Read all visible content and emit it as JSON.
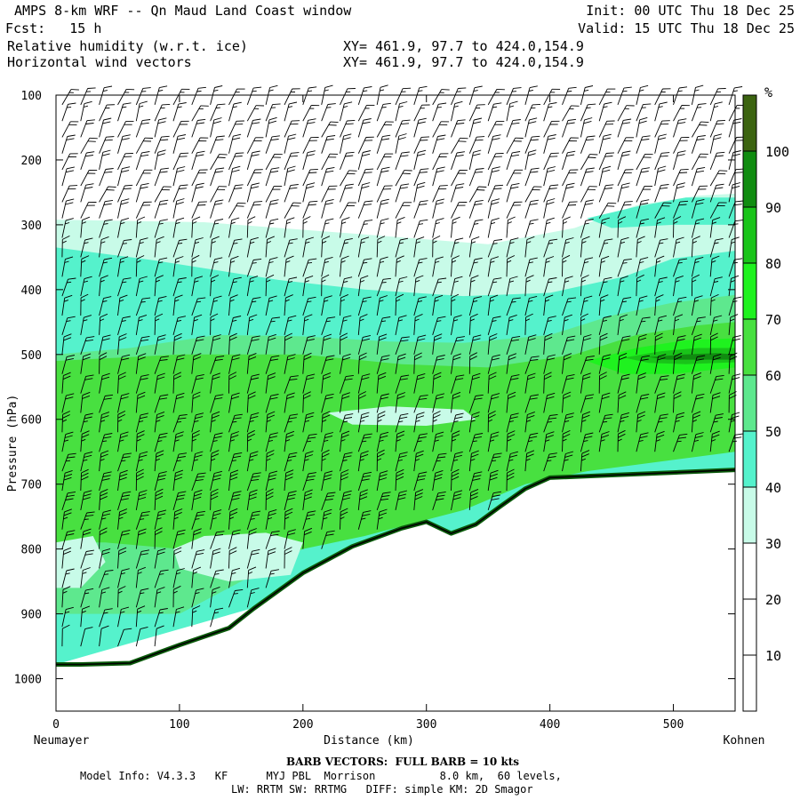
{
  "header": {
    "title": "AMPS 8-km WRF -- Qn Maud Land Coast window",
    "forecast": "Fcst:   15 h",
    "field1": "Relative humidity (w.r.t. ice)",
    "field2": "Horizontal wind vectors",
    "xy1": "XY= 461.9, 97.7 to 424.0,154.9",
    "xy2": "XY= 461.9, 97.7 to 424.0,154.9",
    "init": "Init: 00 UTC Thu 18 Dec 25",
    "valid": "Valid: 15 UTC Thu 18 Dec 25"
  },
  "footer": {
    "barb_note": "BARB VECTORS:  FULL BARB = 10 kts",
    "model_line1": "Model Info: V4.3.3   KF      MYJ PBL  Morrison          8.0 km,  60 levels,",
    "model_line2": "LW: RRTM SW: RRTMG   DIFF: simple KM: 2D Smagor"
  },
  "chart_data": {
    "type": "heatmap",
    "title": "Relative humidity (w.r.t. ice) cross-section with horizontal wind barbs",
    "xlabel": "Distance (km)",
    "ylabel": "Pressure (hPa)",
    "xlim": [
      0,
      550
    ],
    "ylim": [
      1050,
      100
    ],
    "x_ticks": [
      0,
      100,
      200,
      300,
      400,
      500
    ],
    "y_ticks": [
      100,
      200,
      300,
      400,
      500,
      600,
      700,
      800,
      900,
      1000
    ],
    "x_endpoints": {
      "left": "Neumayer",
      "right": "Kohnen"
    },
    "colorbar": {
      "unit": "%",
      "ticks": [
        10,
        20,
        30,
        40,
        50,
        60,
        70,
        80,
        90,
        100
      ],
      "levels": [
        {
          "from": 0,
          "to": 30,
          "color": "#ffffff"
        },
        {
          "from": 30,
          "to": 40,
          "color": "#c8fbe8"
        },
        {
          "from": 40,
          "to": 50,
          "color": "#55f2cc"
        },
        {
          "from": 50,
          "to": 60,
          "color": "#5ee88e"
        },
        {
          "from": 60,
          "to": 70,
          "color": "#48e040"
        },
        {
          "from": 70,
          "to": 80,
          "color": "#1ff21f"
        },
        {
          "from": 80,
          "to": 90,
          "color": "#19c419"
        },
        {
          "from": 90,
          "to": 100,
          "color": "#108c10"
        },
        {
          "from": 100,
          "to": 110,
          "color": "#3c6410"
        }
      ]
    },
    "terrain_surface_hPa": [
      [
        0,
        978
      ],
      [
        20,
        978
      ],
      [
        60,
        976
      ],
      [
        100,
        948
      ],
      [
        140,
        922
      ],
      [
        160,
        892
      ],
      [
        200,
        837
      ],
      [
        240,
        796
      ],
      [
        280,
        768
      ],
      [
        300,
        758
      ],
      [
        320,
        776
      ],
      [
        340,
        762
      ],
      [
        360,
        734
      ],
      [
        380,
        707
      ],
      [
        400,
        690
      ],
      [
        450,
        686
      ],
      [
        500,
        682
      ],
      [
        550,
        678
      ]
    ],
    "rh_regions": [
      {
        "level": 30,
        "polygon": [
          [
            0,
            292
          ],
          [
            120,
            296
          ],
          [
            250,
            315
          ],
          [
            350,
            330
          ],
          [
            420,
            305
          ],
          [
            470,
            270
          ],
          [
            520,
            255
          ],
          [
            550,
            252
          ],
          [
            550,
            678
          ],
          [
            0,
            978
          ]
        ]
      },
      {
        "level": 40,
        "polygon": [
          [
            0,
            335
          ],
          [
            80,
            355
          ],
          [
            180,
            385
          ],
          [
            250,
            400
          ],
          [
            330,
            410
          ],
          [
            400,
            405
          ],
          [
            460,
            380
          ],
          [
            500,
            352
          ],
          [
            550,
            340
          ],
          [
            550,
            678
          ],
          [
            0,
            978
          ]
        ]
      },
      {
        "level": 40,
        "polygon": [
          [
            430,
            290
          ],
          [
            470,
            272
          ],
          [
            510,
            258
          ],
          [
            550,
            258
          ],
          [
            550,
            300
          ],
          [
            500,
            300
          ],
          [
            450,
            305
          ]
        ]
      },
      {
        "level": 50,
        "polygon": [
          [
            0,
            500
          ],
          [
            60,
            490
          ],
          [
            130,
            470
          ],
          [
            200,
            472
          ],
          [
            270,
            480
          ],
          [
            330,
            482
          ],
          [
            400,
            470
          ],
          [
            450,
            440
          ],
          [
            500,
            420
          ],
          [
            550,
            408
          ],
          [
            550,
            640
          ],
          [
            400,
            690
          ],
          [
            300,
            740
          ],
          [
            200,
            800
          ],
          [
            100,
            900
          ],
          [
            0,
            900
          ]
        ]
      },
      {
        "level": 60,
        "polygon": [
          [
            0,
            510
          ],
          [
            100,
            500
          ],
          [
            200,
            500
          ],
          [
            280,
            515
          ],
          [
            350,
            520
          ],
          [
            420,
            500
          ],
          [
            470,
            470
          ],
          [
            520,
            455
          ],
          [
            550,
            450
          ],
          [
            550,
            650
          ],
          [
            430,
            680
          ],
          [
            380,
            700
          ],
          [
            330,
            740
          ],
          [
            300,
            755
          ],
          [
            250,
            780
          ],
          [
            200,
            800
          ],
          [
            140,
            820
          ],
          [
            100,
            800
          ],
          [
            40,
            790
          ],
          [
            0,
            790
          ]
        ]
      },
      {
        "level": 70,
        "polygon": [
          [
            430,
            510
          ],
          [
            470,
            490
          ],
          [
            510,
            478
          ],
          [
            550,
            475
          ],
          [
            550,
            520
          ],
          [
            500,
            530
          ],
          [
            460,
            530
          ]
        ]
      },
      {
        "level": 80,
        "polygon": [
          [
            460,
            505
          ],
          [
            490,
            495
          ],
          [
            520,
            490
          ],
          [
            550,
            490
          ],
          [
            550,
            512
          ],
          [
            510,
            515
          ],
          [
            480,
            513
          ]
        ]
      },
      {
        "level": 90,
        "polygon": [
          [
            480,
            504
          ],
          [
            510,
            500
          ],
          [
            535,
            498
          ],
          [
            550,
            500
          ],
          [
            550,
            508
          ],
          [
            520,
            508
          ],
          [
            495,
            508
          ]
        ]
      }
    ],
    "rh_dry_pockets": [
      {
        "level": 30,
        "polygon": [
          [
            95,
            800
          ],
          [
            120,
            780
          ],
          [
            170,
            775
          ],
          [
            200,
            790
          ],
          [
            190,
            840
          ],
          [
            140,
            850
          ],
          [
            100,
            830
          ]
        ]
      },
      {
        "level": 30,
        "polygon": [
          [
            220,
            590
          ],
          [
            270,
            580
          ],
          [
            330,
            585
          ],
          [
            340,
            600
          ],
          [
            300,
            610
          ],
          [
            240,
            608
          ]
        ]
      },
      {
        "level": 30,
        "polygon": [
          [
            0,
            790
          ],
          [
            30,
            780
          ],
          [
            40,
            820
          ],
          [
            20,
            860
          ],
          [
            0,
            860
          ]
        ]
      }
    ],
    "wind_barbs": {
      "columns_km": [
        5,
        20,
        35,
        50,
        65,
        80,
        95,
        110,
        125,
        140,
        155,
        170,
        185,
        200,
        215,
        230,
        245,
        260,
        275,
        290,
        305,
        320,
        335,
        350,
        365,
        380,
        395,
        410,
        425,
        440,
        455,
        470,
        485,
        500,
        515,
        530,
        545
      ],
      "levels_hPa": [
        115,
        140,
        165,
        190,
        215,
        240,
        265,
        290,
        320,
        350,
        380,
        410,
        440,
        470,
        500,
        530,
        560,
        590,
        620,
        650,
        680,
        710,
        740,
        770,
        800,
        830,
        860,
        890,
        920,
        950,
        975
      ],
      "speed_kts_by_height": [
        15,
        15,
        20,
        20,
        20,
        20,
        20,
        20,
        15,
        15,
        15,
        15,
        15,
        15,
        20,
        20,
        20,
        20,
        25,
        25,
        25,
        30,
        30,
        25,
        20,
        20,
        15,
        15,
        15,
        10,
        10
      ]
    }
  }
}
